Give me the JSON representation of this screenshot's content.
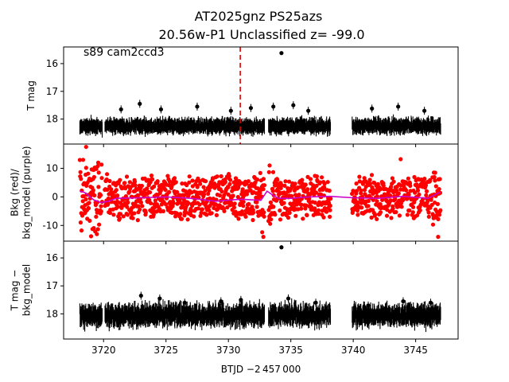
{
  "chart_data": {
    "type": "scatter",
    "title_line1": "AT2025gnz  PS25azs",
    "title_line2": "20.56w-P1 Unclassified z= -99.0",
    "annotation": "s89 cam2ccd3",
    "xlabel": "BTJD −2 457 000",
    "xlim": [
      3716.8,
      3748.4
    ],
    "xticks": [
      3720,
      3725,
      3730,
      3735,
      3740,
      3745
    ],
    "grid": false,
    "data_gaps": [
      [
        3719.9,
        3720.1
      ],
      [
        3732.9,
        3733.2
      ],
      [
        3738.2,
        3739.9
      ]
    ],
    "panels": [
      {
        "ylabel": [
          "T mag"
        ],
        "ylim": [
          18.9,
          15.4
        ],
        "yticks": [
          16,
          17,
          18
        ],
        "color": "#000000",
        "marker_line": {
          "x": 3730.95,
          "color": "#dd0000",
          "style": "dashed"
        },
        "series": [
          {
            "name": "",
            "kind": "errorbar_band",
            "x_range": [
              3718.1,
              3747.0
            ],
            "median": 18.25,
            "scatter": 0.12,
            "err": 0.22
          },
          {
            "name": "",
            "kind": "points",
            "x": [
              3734.25,
              3721.4,
              3722.9,
              3724.6,
              3727.5,
              3730.2,
              3731.8,
              3733.6,
              3735.2,
              3736.4,
              3741.5,
              3743.6,
              3745.7
            ],
            "y": [
              15.62,
              17.65,
              17.45,
              17.65,
              17.55,
              17.7,
              17.6,
              17.55,
              17.5,
              17.7,
              17.62,
              17.55,
              17.7
            ]
          }
        ]
      },
      {
        "ylabel": [
          "Bkg (red)/",
          "bkg_model (purple)"
        ],
        "ylim": [
          -15.5,
          18.5
        ],
        "yticks": [
          -10,
          0,
          10
        ],
        "series": [
          {
            "name": "",
            "kind": "bkg_points",
            "color": "#ff0000",
            "x_range": [
              3718.1,
              3747.0
            ],
            "spikes": [
              [
                3718.6,
                17.5
              ],
              [
                3719.0,
                -13.8
              ],
              [
                3732.8,
                -14.0
              ],
              [
                3733.3,
                11.0
              ],
              [
                3743.8,
                13.2
              ],
              [
                3746.8,
                -14.0
              ]
            ]
          },
          {
            "name": "",
            "kind": "model_line",
            "color": "#cc00cc",
            "x": [
              3718.1,
              3718.5,
              3719.2,
              3719.8,
              3720.4,
              3721,
              3723,
              3725,
              3727,
              3729,
              3731,
              3732.6,
              3733.1,
              3733.6,
              3734,
              3735,
              3736.5,
              3738.1,
              3740,
              3742,
              3744,
              3746,
              3747.0
            ],
            "y": [
              2.0,
              1.5,
              -1.0,
              -2.0,
              -1.5,
              -0.5,
              -0.3,
              0.0,
              -0.5,
              -1.5,
              -0.8,
              -1.2,
              2.0,
              0.5,
              -0.5,
              -0.5,
              0.0,
              0.2,
              -0.3,
              -0.5,
              0.2,
              -0.5,
              1.8
            ]
          }
        ]
      },
      {
        "ylabel": [
          "T mag −",
          "bkg_model"
        ],
        "ylim": [
          18.9,
          15.4
        ],
        "yticks": [
          16,
          17,
          18
        ],
        "color": "#000000",
        "series": [
          {
            "name": "",
            "kind": "errorbar_band",
            "x_range": [
              3718.1,
              3747.0
            ],
            "median": 18.05,
            "scatter": 0.2,
            "err": 0.3
          },
          {
            "name": "",
            "kind": "points",
            "x": [
              3734.25,
              3723.0,
              3724.5,
              3726.5,
              3729.4,
              3731.0,
              3734.8,
              3737.0,
              3741.2,
              3744.0,
              3746.2
            ],
            "y": [
              15.62,
              17.35,
              17.45,
              17.6,
              17.55,
              17.5,
              17.45,
              17.6,
              17.7,
              17.55,
              17.6
            ]
          }
        ]
      }
    ]
  }
}
